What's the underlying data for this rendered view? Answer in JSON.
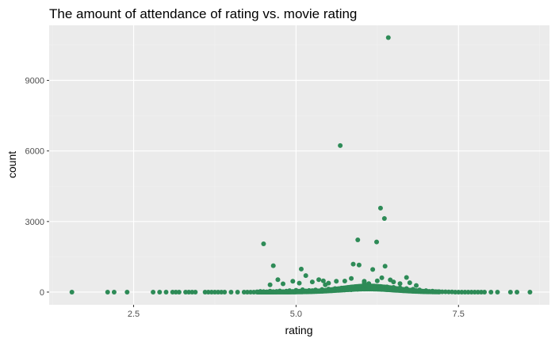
{
  "chart_data": {
    "type": "scatter",
    "title": "The amount of attendance of rating vs. movie rating",
    "xlabel": "rating",
    "ylabel": "count",
    "xlim": [
      1.2,
      8.9
    ],
    "ylim": [
      -540,
      11340
    ],
    "x_ticks": [
      2.5,
      5.0,
      7.5
    ],
    "x_tick_labels": [
      "2.5",
      "5.0",
      "7.5"
    ],
    "y_ticks": [
      0,
      3000,
      6000,
      9000
    ],
    "y_tick_labels": [
      "0",
      "3000",
      "6000",
      "9000"
    ],
    "grid": true,
    "legend": "none",
    "colors": {
      "point": "#2e8b57",
      "panel": "#ebebeb",
      "grid_major": "#ffffff",
      "grid_minor": "#f2f2f2",
      "text": "#4d4d4d"
    },
    "points": [
      [
        1.55,
        0
      ],
      [
        2.1,
        0
      ],
      [
        2.2,
        0
      ],
      [
        2.4,
        0
      ],
      [
        2.8,
        0
      ],
      [
        2.9,
        0
      ],
      [
        3.0,
        0
      ],
      [
        3.1,
        0
      ],
      [
        3.15,
        0
      ],
      [
        3.2,
        0
      ],
      [
        3.3,
        0
      ],
      [
        3.35,
        0
      ],
      [
        3.4,
        0
      ],
      [
        3.45,
        0
      ],
      [
        3.6,
        0
      ],
      [
        3.65,
        0
      ],
      [
        3.7,
        0
      ],
      [
        3.75,
        0
      ],
      [
        3.8,
        0
      ],
      [
        3.85,
        0
      ],
      [
        3.9,
        0
      ],
      [
        4.0,
        0
      ],
      [
        4.1,
        0
      ],
      [
        4.2,
        0
      ],
      [
        4.25,
        0
      ],
      [
        4.3,
        0
      ],
      [
        4.35,
        0
      ],
      [
        4.4,
        10
      ],
      [
        4.45,
        30
      ],
      [
        4.5,
        20
      ],
      [
        4.55,
        10
      ],
      [
        4.6,
        40
      ],
      [
        4.65,
        20
      ],
      [
        4.7,
        30
      ],
      [
        4.75,
        50
      ],
      [
        4.8,
        20
      ],
      [
        4.85,
        40
      ],
      [
        4.9,
        60
      ],
      [
        4.95,
        30
      ],
      [
        5.0,
        80
      ],
      [
        5.05,
        40
      ],
      [
        5.1,
        100
      ],
      [
        5.15,
        50
      ],
      [
        5.2,
        70
      ],
      [
        5.25,
        60
      ],
      [
        5.3,
        90
      ],
      [
        5.35,
        40
      ],
      [
        5.4,
        110
      ],
      [
        5.45,
        70
      ],
      [
        5.5,
        130
      ],
      [
        5.55,
        60
      ],
      [
        5.6,
        150
      ],
      [
        5.65,
        80
      ],
      [
        5.7,
        170
      ],
      [
        5.75,
        90
      ],
      [
        5.8,
        190
      ],
      [
        5.85,
        100
      ],
      [
        5.9,
        210
      ],
      [
        5.95,
        120
      ],
      [
        6.0,
        230
      ],
      [
        6.05,
        130
      ],
      [
        6.1,
        250
      ],
      [
        6.15,
        140
      ],
      [
        6.2,
        260
      ],
      [
        6.25,
        150
      ],
      [
        6.3,
        240
      ],
      [
        6.35,
        160
      ],
      [
        6.4,
        220
      ],
      [
        6.45,
        140
      ],
      [
        6.5,
        200
      ],
      [
        6.55,
        120
      ],
      [
        6.6,
        180
      ],
      [
        6.65,
        100
      ],
      [
        6.7,
        150
      ],
      [
        6.75,
        80
      ],
      [
        6.8,
        120
      ],
      [
        6.85,
        60
      ],
      [
        6.9,
        90
      ],
      [
        6.95,
        40
      ],
      [
        7.0,
        60
      ],
      [
        7.05,
        30
      ],
      [
        7.1,
        40
      ],
      [
        7.15,
        20
      ],
      [
        7.2,
        20
      ],
      [
        7.25,
        10
      ],
      [
        7.3,
        10
      ],
      [
        7.35,
        5
      ],
      [
        7.4,
        5
      ],
      [
        7.45,
        0
      ],
      [
        7.5,
        0
      ],
      [
        7.55,
        0
      ],
      [
        7.6,
        0
      ],
      [
        7.65,
        0
      ],
      [
        7.7,
        0
      ],
      [
        7.75,
        0
      ],
      [
        7.8,
        0
      ],
      [
        7.85,
        0
      ],
      [
        7.9,
        0
      ],
      [
        8.0,
        0
      ],
      [
        8.1,
        0
      ],
      [
        8.3,
        0
      ],
      [
        8.4,
        0
      ],
      [
        8.6,
        0
      ],
      [
        4.5,
        2050
      ],
      [
        4.65,
        1120
      ],
      [
        4.72,
        530
      ],
      [
        4.6,
        310
      ],
      [
        4.8,
        350
      ],
      [
        4.95,
        460
      ],
      [
        5.08,
        980
      ],
      [
        5.15,
        700
      ],
      [
        5.05,
        380
      ],
      [
        5.25,
        430
      ],
      [
        5.35,
        530
      ],
      [
        5.42,
        480
      ],
      [
        5.5,
        380
      ],
      [
        5.62,
        460
      ],
      [
        5.68,
        6230
      ],
      [
        5.75,
        470
      ],
      [
        5.85,
        580
      ],
      [
        5.88,
        1190
      ],
      [
        5.95,
        2220
      ],
      [
        5.97,
        1150
      ],
      [
        6.05,
        460
      ],
      [
        6.12,
        360
      ],
      [
        6.18,
        960
      ],
      [
        6.24,
        2130
      ],
      [
        6.3,
        3570
      ],
      [
        6.32,
        610
      ],
      [
        6.36,
        3130
      ],
      [
        6.37,
        1100
      ],
      [
        6.42,
        10820
      ],
      [
        6.45,
        520
      ],
      [
        6.5,
        430
      ],
      [
        6.6,
        360
      ],
      [
        6.7,
        620
      ],
      [
        6.75,
        400
      ],
      [
        6.85,
        280
      ],
      [
        6.25,
        480
      ],
      [
        6.05,
        390
      ],
      [
        5.45,
        310
      ]
    ]
  }
}
